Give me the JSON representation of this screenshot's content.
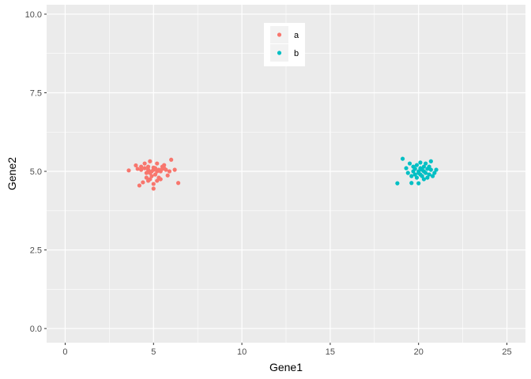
{
  "chart_data": {
    "type": "scatter",
    "xlabel": "Gene1",
    "ylabel": "Gene2",
    "xlim": [
      -1.05,
      26.05
    ],
    "ylim": [
      -0.45,
      10.3
    ],
    "x_ticks": [
      0,
      5,
      10,
      15,
      20,
      25
    ],
    "x_tick_labels": [
      "0",
      "5",
      "10",
      "15",
      "20",
      "25"
    ],
    "y_ticks": [
      0,
      2.5,
      5,
      7.5,
      10
    ],
    "y_tick_labels": [
      "0.0",
      "2.5",
      "5.0",
      "7.5",
      "10.0"
    ],
    "grid": true,
    "legend_position": "top-center",
    "series": [
      {
        "name": "a",
        "color": "#F8766D",
        "points": [
          [
            3.6,
            5.03
          ],
          [
            4.0,
            5.19
          ],
          [
            4.1,
            5.08
          ],
          [
            4.2,
            4.55
          ],
          [
            4.3,
            5.05
          ],
          [
            4.3,
            5.15
          ],
          [
            4.4,
            4.65
          ],
          [
            4.5,
            5.1
          ],
          [
            4.5,
            5.25
          ],
          [
            4.6,
            4.95
          ],
          [
            4.6,
            4.8
          ],
          [
            4.7,
            4.7
          ],
          [
            4.7,
            5.05
          ],
          [
            4.7,
            5.15
          ],
          [
            4.8,
            4.75
          ],
          [
            4.8,
            4.95
          ],
          [
            4.8,
            5.32
          ],
          [
            4.9,
            5.0
          ],
          [
            4.9,
            4.85
          ],
          [
            5.0,
            5.05
          ],
          [
            5.0,
            5.12
          ],
          [
            5.0,
            4.6
          ],
          [
            5.0,
            4.45
          ],
          [
            5.1,
            4.9
          ],
          [
            5.1,
            5.1
          ],
          [
            5.2,
            5.0
          ],
          [
            5.2,
            5.25
          ],
          [
            5.2,
            4.7
          ],
          [
            5.3,
            4.8
          ],
          [
            5.3,
            5.05
          ],
          [
            5.4,
            5.0
          ],
          [
            5.4,
            4.75
          ],
          [
            5.5,
            5.15
          ],
          [
            5.5,
            5.08
          ],
          [
            5.6,
            5.2
          ],
          [
            5.6,
            5.1
          ],
          [
            5.7,
            5.05
          ],
          [
            5.8,
            4.87
          ],
          [
            5.9,
            5.0
          ],
          [
            6.0,
            5.37
          ],
          [
            6.2,
            5.05
          ],
          [
            6.4,
            4.63
          ]
        ]
      },
      {
        "name": "b",
        "color": "#00BFC4",
        "points": [
          [
            18.8,
            4.62
          ],
          [
            19.1,
            5.4
          ],
          [
            19.3,
            5.1
          ],
          [
            19.4,
            4.95
          ],
          [
            19.5,
            5.25
          ],
          [
            19.6,
            4.85
          ],
          [
            19.6,
            4.63
          ],
          [
            19.7,
            5.0
          ],
          [
            19.7,
            5.15
          ],
          [
            19.8,
            4.9
          ],
          [
            19.8,
            5.08
          ],
          [
            19.9,
            4.8
          ],
          [
            19.9,
            5.2
          ],
          [
            20.0,
            5.0
          ],
          [
            20.0,
            4.95
          ],
          [
            20.0,
            4.62
          ],
          [
            20.1,
            5.1
          ],
          [
            20.1,
            4.9
          ],
          [
            20.1,
            5.28
          ],
          [
            20.2,
            5.05
          ],
          [
            20.2,
            4.85
          ],
          [
            20.3,
            5.0
          ],
          [
            20.3,
            4.75
          ],
          [
            20.3,
            5.15
          ],
          [
            20.4,
            5.25
          ],
          [
            20.4,
            4.95
          ],
          [
            20.5,
            4.8
          ],
          [
            20.5,
            5.08
          ],
          [
            20.6,
            4.9
          ],
          [
            20.6,
            5.15
          ],
          [
            20.7,
            5.32
          ],
          [
            20.7,
            5.05
          ],
          [
            20.8,
            4.85
          ],
          [
            20.9,
            4.95
          ],
          [
            21.0,
            5.05
          ]
        ]
      }
    ]
  }
}
